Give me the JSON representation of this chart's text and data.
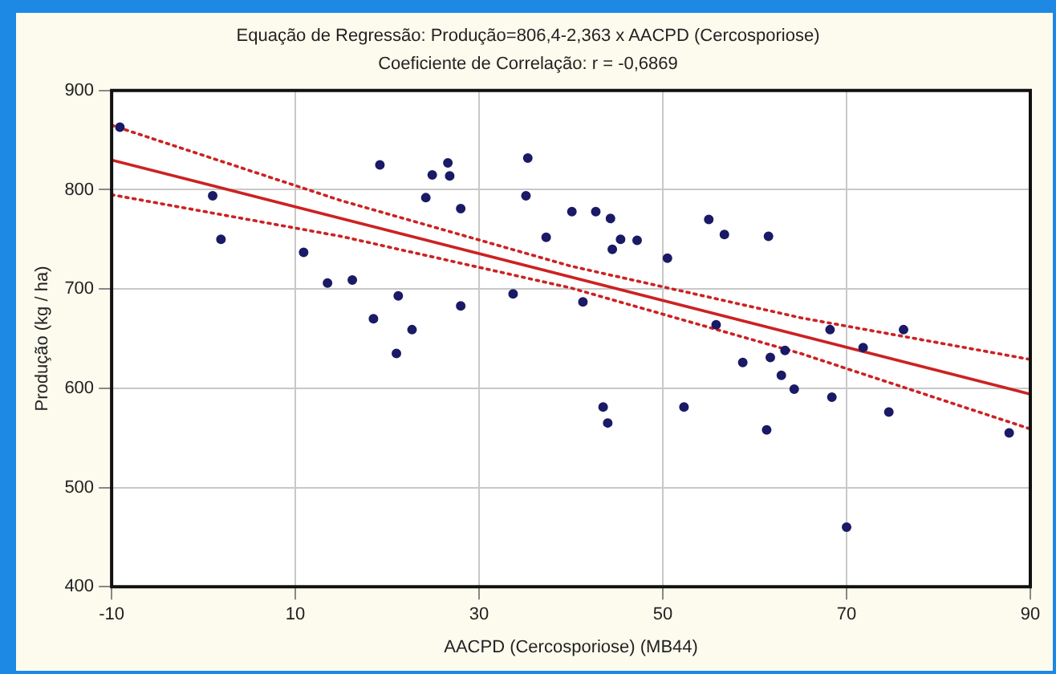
{
  "chart_data": {
    "type": "scatter",
    "title": "Equação de Regressão: Produção=806,4-2,363 x AACPD (Cercosporiose)",
    "subtitle": "Coeficiente de Correlação: r = -0,6869",
    "xlabel": "AACPD (Cercosporiose) (MB44)",
    "ylabel": "Produção (kg / ha)",
    "xlim": [
      -10,
      90
    ],
    "xticks": [
      -10,
      10,
      30,
      50,
      70,
      90
    ],
    "ylim": [
      400,
      900
    ],
    "yticks": [
      400,
      500,
      600,
      700,
      800,
      900
    ],
    "grid": true,
    "legend": false,
    "series": [
      {
        "type": "scatter",
        "color": "#1a1a66",
        "marker": "circle",
        "x": [
          1.0,
          1.9,
          -9.1,
          10.9,
          13.5,
          16.2,
          19.2,
          24.9,
          26.6,
          26.8,
          24.2,
          21.2,
          18.5,
          22.7,
          21,
          28,
          28,
          33.7,
          35.3,
          35.1,
          40.1,
          42.7,
          44.3,
          45.4,
          47.2,
          44.5,
          37.3,
          50.5,
          55,
          56.7,
          61.5,
          41.3,
          55.8,
          68.2,
          71.8,
          76.2,
          63.3,
          61.7,
          58.7,
          62.9,
          64.3,
          68.4,
          43.5,
          44,
          52.3,
          61.3,
          70,
          74.6,
          87.7
        ],
        "values": [
          794,
          750,
          863,
          737,
          706,
          709,
          825,
          815,
          827,
          814,
          792,
          693,
          670,
          659,
          635,
          683,
          781,
          695,
          832,
          794,
          778,
          778,
          771,
          750,
          749,
          740,
          752,
          731,
          770,
          755,
          753,
          687,
          664,
          659,
          641,
          659,
          638,
          631,
          626,
          613,
          599,
          591,
          581,
          565,
          581,
          558,
          460,
          576,
          555
        ]
      },
      {
        "type": "line",
        "color": "#cc2222",
        "marker": "none",
        "line_style": "solid",
        "x": [
          -10,
          90
        ],
        "values": [
          830,
          594
        ]
      },
      {
        "type": "line",
        "color": "#cc2222",
        "marker": "none",
        "line_style": "dotted",
        "x": [
          -10,
          15,
          40,
          65,
          90
        ],
        "values": [
          865,
          789,
          723,
          671,
          629
        ]
      },
      {
        "type": "line",
        "color": "#cc2222",
        "marker": "none",
        "line_style": "dotted",
        "x": [
          -10,
          15,
          40,
          65,
          90
        ],
        "values": [
          795,
          753,
          701,
          635,
          559
        ]
      }
    ]
  }
}
